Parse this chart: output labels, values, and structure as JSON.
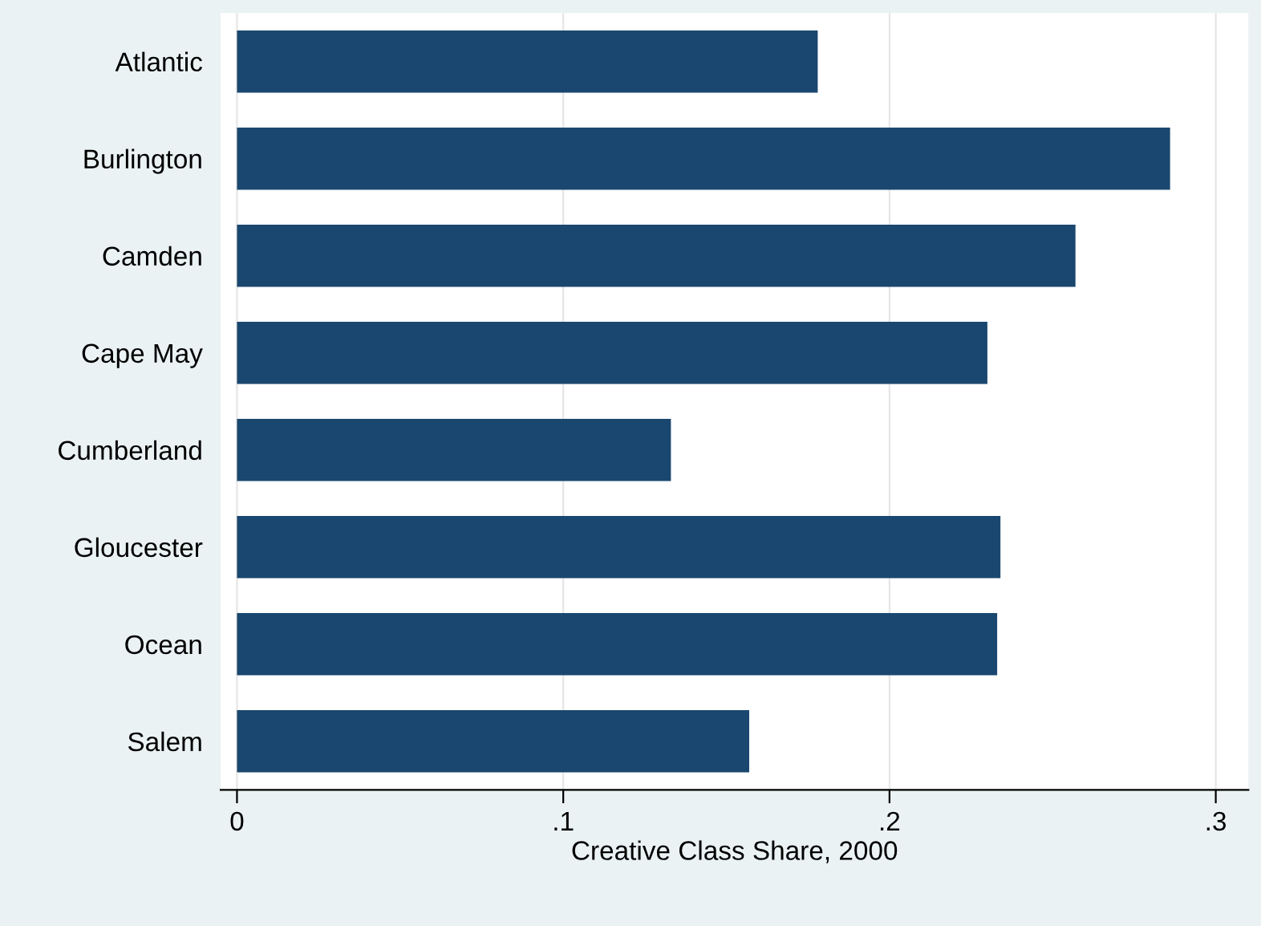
{
  "chart_data": {
    "type": "bar",
    "orientation": "horizontal",
    "xlabel": "Creative Class Share, 2000",
    "categories": [
      "Atlantic",
      "Burlington",
      "Camden",
      "Cape May",
      "Cumberland",
      "Gloucester",
      "Ocean",
      "Salem"
    ],
    "values": [
      0.178,
      0.286,
      0.257,
      0.23,
      0.133,
      0.234,
      0.233,
      0.157
    ],
    "color": "#1a476f",
    "xlim": [
      -0.005,
      0.31
    ],
    "xticks": [
      {
        "value": 0,
        "label": "0"
      },
      {
        "value": 0.1,
        "label": ".1"
      },
      {
        "value": 0.2,
        "label": ".2"
      },
      {
        "value": 0.3,
        "label": ".3"
      }
    ],
    "grid": "x"
  }
}
